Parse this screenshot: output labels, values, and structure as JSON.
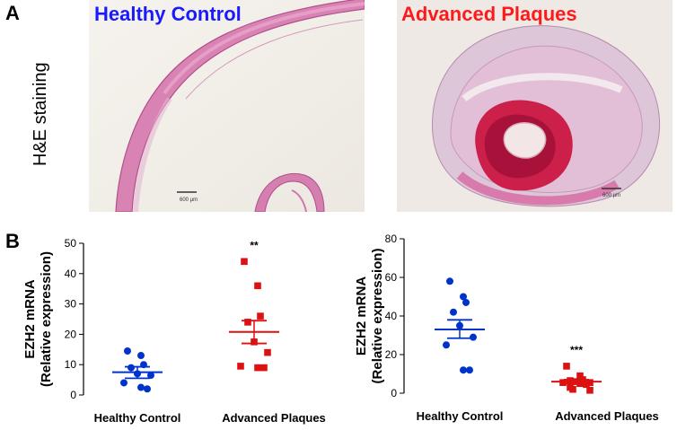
{
  "figure": {
    "panel_a_letter": "A",
    "panel_b_letter": "B",
    "he_label": "H&E staining",
    "micrographs": [
      {
        "title": "Healthy Control",
        "title_color": "#1a1aff",
        "scale_bar": "600 µm"
      },
      {
        "title": "Advanced Plaques",
        "title_color": "#ff1a1a",
        "scale_bar": "600 µm"
      }
    ]
  },
  "colors": {
    "healthy": "#0033cc",
    "plaque": "#dd1111",
    "tissue_pink": "#d47aa8",
    "background_micro": "#f3f0ea"
  },
  "chart_data": [
    {
      "type": "scatter",
      "title": "",
      "ylabel_line1": "EZH2 mRNA",
      "ylabel_line2": "(Relative expression)",
      "ylim": [
        0,
        50
      ],
      "yticks": [
        "0",
        "10",
        "20",
        "30",
        "40",
        "50"
      ],
      "yticks_values": [
        0,
        10,
        20,
        30,
        40,
        50
      ],
      "categories": [
        "Healthy Control",
        "Advanced Plaques"
      ],
      "significance": [
        "",
        "**"
      ],
      "series": [
        {
          "name": "Healthy Control",
          "mean": 7.5,
          "sem_low": 5.5,
          "sem_high": 9.3,
          "values": [
            14.5,
            13.0,
            10.0,
            9.0,
            7.0,
            6.5,
            4.0,
            2.5,
            2.0
          ]
        },
        {
          "name": "Advanced Plaques",
          "mean": 20.8,
          "sem_low": 17.0,
          "sem_high": 24.5,
          "values": [
            44.0,
            36.0,
            26.0,
            24.0,
            17.5,
            14.0,
            9.5,
            9.0,
            9.0
          ]
        }
      ]
    },
    {
      "type": "scatter",
      "title": "",
      "ylabel_line1": "EZH2 mRNA",
      "ylabel_line2": "(Relative expression)",
      "ylim": [
        0,
        80
      ],
      "yticks": [
        "0",
        "20",
        "40",
        "60",
        "80"
      ],
      "yticks_values": [
        0,
        20,
        40,
        60,
        80
      ],
      "categories": [
        "Healthy Control",
        "Advanced Plaques"
      ],
      "significance": [
        "",
        "***"
      ],
      "series": [
        {
          "name": "Healthy Control",
          "mean": 33.0,
          "sem_low": 28.5,
          "sem_high": 38.0,
          "values": [
            58.0,
            50.0,
            47.0,
            42.0,
            35.0,
            29.0,
            25.0,
            12.0,
            12.0
          ]
        },
        {
          "name": "Advanced Plaques",
          "mean": 6.0,
          "sem_low": 5.0,
          "sem_high": 7.0,
          "values": [
            14.0,
            9.0,
            7.0,
            6.5,
            6.0,
            5.5,
            5.5,
            5.0,
            4.5,
            3.0,
            2.0,
            1.5
          ]
        }
      ]
    }
  ]
}
